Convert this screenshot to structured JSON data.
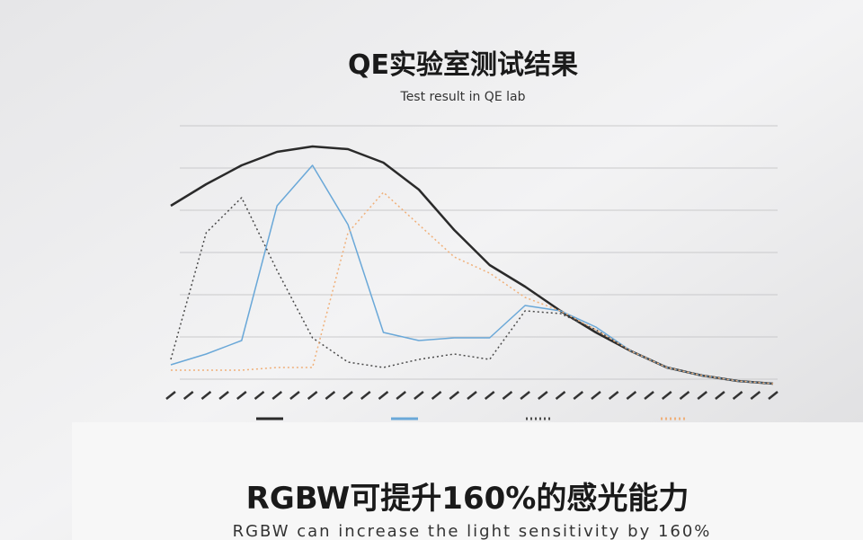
{
  "chart_data": {
    "type": "line",
    "title": "QE实验室测试结果",
    "subtitle": "Test result in QE lab",
    "footer_title": "RGBW可提升160%的感光能力",
    "footer_subtitle": "RGBW can increase the light sensitivity by 160%",
    "categories": [
      null,
      null,
      null,
      null,
      null,
      null,
      null,
      null,
      null,
      null,
      null,
      null,
      null,
      null,
      null,
      null,
      null,
      null
    ],
    "ylim": [
      0,
      100
    ],
    "grid": true,
    "series": [
      {
        "color": "#2a2a2a",
        "style": "solid",
        "values": [
          67,
          75,
          82,
          87,
          89,
          88,
          83,
          73,
          58,
          45,
          37,
          28,
          20,
          13,
          7,
          4,
          2,
          1
        ]
      },
      {
        "color": "#6aa8d8",
        "style": "solid",
        "values": [
          8,
          12,
          17,
          67,
          82,
          60,
          20,
          17,
          18,
          18,
          30,
          28,
          22,
          13,
          7,
          4,
          2,
          1
        ]
      },
      {
        "color": "#4a4a4a",
        "style": "dotted",
        "values": [
          10,
          57,
          70,
          43,
          18,
          9,
          7,
          10,
          12,
          10,
          28,
          27,
          21,
          13,
          7,
          4,
          2,
          1
        ]
      },
      {
        "color": "#f0b07a",
        "style": "dotted",
        "values": [
          6,
          6,
          6,
          7,
          7,
          57,
          72,
          60,
          48,
          42,
          33,
          28,
          21,
          13,
          7,
          4,
          2,
          1
        ]
      }
    ]
  }
}
